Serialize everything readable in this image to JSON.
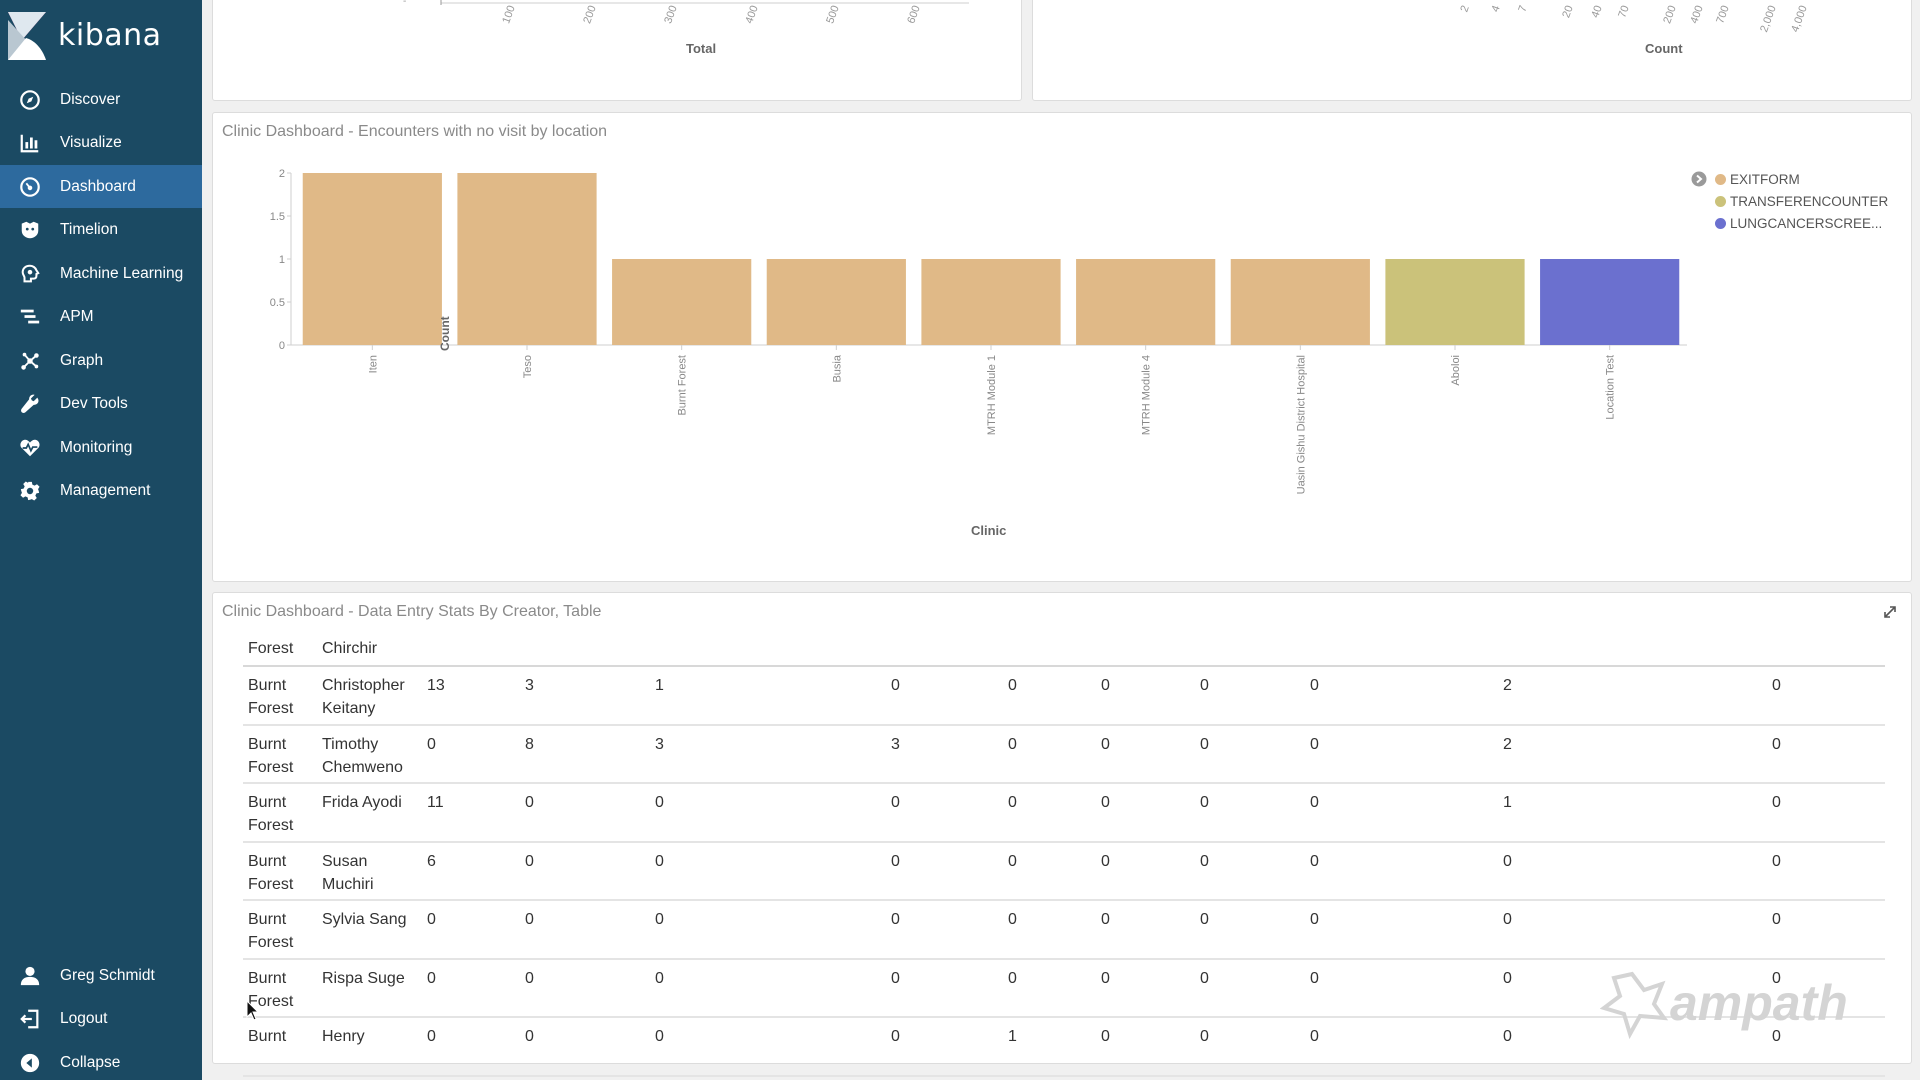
{
  "brand": {
    "name": "kibana"
  },
  "nav": {
    "items": [
      {
        "label": "Discover",
        "icon": "compass-icon",
        "active": false
      },
      {
        "label": "Visualize",
        "icon": "bar-chart-icon",
        "active": false
      },
      {
        "label": "Dashboard",
        "icon": "dashboard-icon",
        "active": true
      },
      {
        "label": "Timelion",
        "icon": "timelion-icon",
        "active": false
      },
      {
        "label": "Machine Learning",
        "icon": "ml-icon",
        "active": false
      },
      {
        "label": "APM",
        "icon": "apm-icon",
        "active": false
      },
      {
        "label": "Graph",
        "icon": "graph-icon",
        "active": false
      },
      {
        "label": "Dev Tools",
        "icon": "wrench-icon",
        "active": false
      },
      {
        "label": "Monitoring",
        "icon": "heartbeat-icon",
        "active": false
      },
      {
        "label": "Management",
        "icon": "gear-icon",
        "active": false
      }
    ],
    "bottom": [
      {
        "label": "Greg Schmidt",
        "icon": "user-icon"
      },
      {
        "label": "Logout",
        "icon": "logout-icon"
      },
      {
        "label": "Collapse",
        "icon": "collapse-icon"
      }
    ]
  },
  "top_panels": {
    "left": {
      "xlabel": "Total",
      "ticks": [
        "100",
        "200",
        "300",
        "400",
        "500",
        "600"
      ]
    },
    "right": {
      "xlabel": "Count",
      "ticks": [
        "2",
        "4",
        "7",
        "20",
        "40",
        "70",
        "200",
        "400",
        "700",
        "2,000",
        "4,000"
      ]
    }
  },
  "encounters_panel": {
    "title": "Clinic Dashboard - Encounters with no visit by location"
  },
  "chart_data": {
    "type": "bar",
    "title": "Clinic Dashboard - Encounters with no visit by location",
    "xlabel": "Clinic",
    "ylabel": "Count",
    "ylim": [
      0,
      2
    ],
    "yticks": [
      "0",
      "0.5",
      "1",
      "1.5",
      "2"
    ],
    "categories": [
      "Iten",
      "Teso",
      "Burnt Forest",
      "Busia",
      "MTRH Module 1",
      "MTRH Module 4",
      "Uasin Gishu District Hospital",
      "Aboloi",
      "Location Test"
    ],
    "series": [
      {
        "name": "EXITFORM",
        "color": "#e0b987",
        "values": [
          2,
          2,
          1,
          1,
          1,
          1,
          1,
          0,
          0
        ]
      },
      {
        "name": "TRANSFERENCOUNTER",
        "color": "#cbc27a",
        "values": [
          0,
          0,
          0,
          0,
          0,
          0,
          0,
          1,
          0
        ]
      },
      {
        "name": "LUNGCANCERSCREE...",
        "color": "#6b70cf",
        "values": [
          0,
          0,
          0,
          0,
          0,
          0,
          0,
          0,
          1
        ]
      }
    ],
    "legend": "top-right",
    "grid": false
  },
  "table_panel": {
    "title": "Clinic Dashboard - Data Entry Stats By Creator, Table",
    "header": [
      "Forest",
      "Chirchir"
    ],
    "rows": [
      {
        "loc1": "Burnt",
        "loc2": "Forest",
        "name1": "Christopher",
        "name2": "Keitany",
        "vals": [
          "13",
          "3",
          "1",
          "0",
          "0",
          "0",
          "0",
          "0",
          "2",
          "0"
        ]
      },
      {
        "loc1": "Burnt",
        "loc2": "Forest",
        "name1": "Timothy",
        "name2": "Chemweno",
        "vals": [
          "0",
          "8",
          "3",
          "3",
          "0",
          "0",
          "0",
          "0",
          "2",
          "0"
        ]
      },
      {
        "loc1": "Burnt",
        "loc2": "Forest",
        "name1": "Frida Ayodi",
        "name2": "",
        "vals": [
          "11",
          "0",
          "0",
          "0",
          "0",
          "0",
          "0",
          "0",
          "1",
          "0"
        ]
      },
      {
        "loc1": "Burnt",
        "loc2": "Forest",
        "name1": "Susan",
        "name2": "Muchiri",
        "vals": [
          "6",
          "0",
          "0",
          "0",
          "0",
          "0",
          "0",
          "0",
          "0",
          "0"
        ]
      },
      {
        "loc1": "Burnt",
        "loc2": "Forest",
        "name1": "Sylvia Sang",
        "name2": "",
        "vals": [
          "0",
          "0",
          "0",
          "0",
          "0",
          "0",
          "0",
          "0",
          "0",
          "0"
        ]
      },
      {
        "loc1": "Burnt",
        "loc2": "Forest",
        "name1": "Rispa Suge",
        "name2": "",
        "vals": [
          "0",
          "0",
          "0",
          "0",
          "0",
          "0",
          "0",
          "0",
          "0",
          "0"
        ]
      },
      {
        "loc1": "Burnt",
        "loc2": "",
        "name1": "Henry",
        "name2": "",
        "vals": [
          "0",
          "0",
          "0",
          "0",
          "1",
          "0",
          "0",
          "0",
          "0",
          "0"
        ]
      }
    ]
  },
  "watermark": {
    "text": "ampath"
  }
}
